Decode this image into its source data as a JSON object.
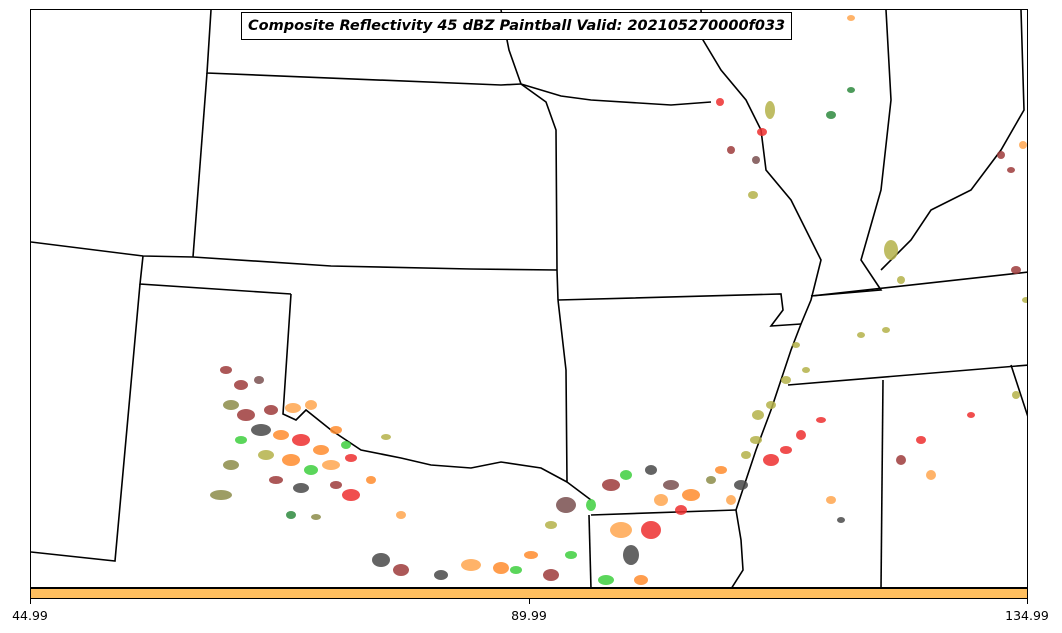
{
  "title": "Composite Reflectivity 45 dBZ Paintball Valid: 202105270000f033",
  "colorbar": {
    "color": "#ffbf5f",
    "ticks": [
      "44.99",
      "89.99",
      "134.99"
    ]
  },
  "palette": {
    "dark_red": "#9e3b3b",
    "red": "#ee3030",
    "orange": "#ff8c2e",
    "light_orange": "#ffa64f",
    "olive": "#b5b24a",
    "dark_olive": "#8c8c4a",
    "green": "#3fcf3f",
    "dark_green": "#2f8a3f",
    "dark_gray": "#4a4a4a",
    "brown_gray": "#7a5050"
  }
}
